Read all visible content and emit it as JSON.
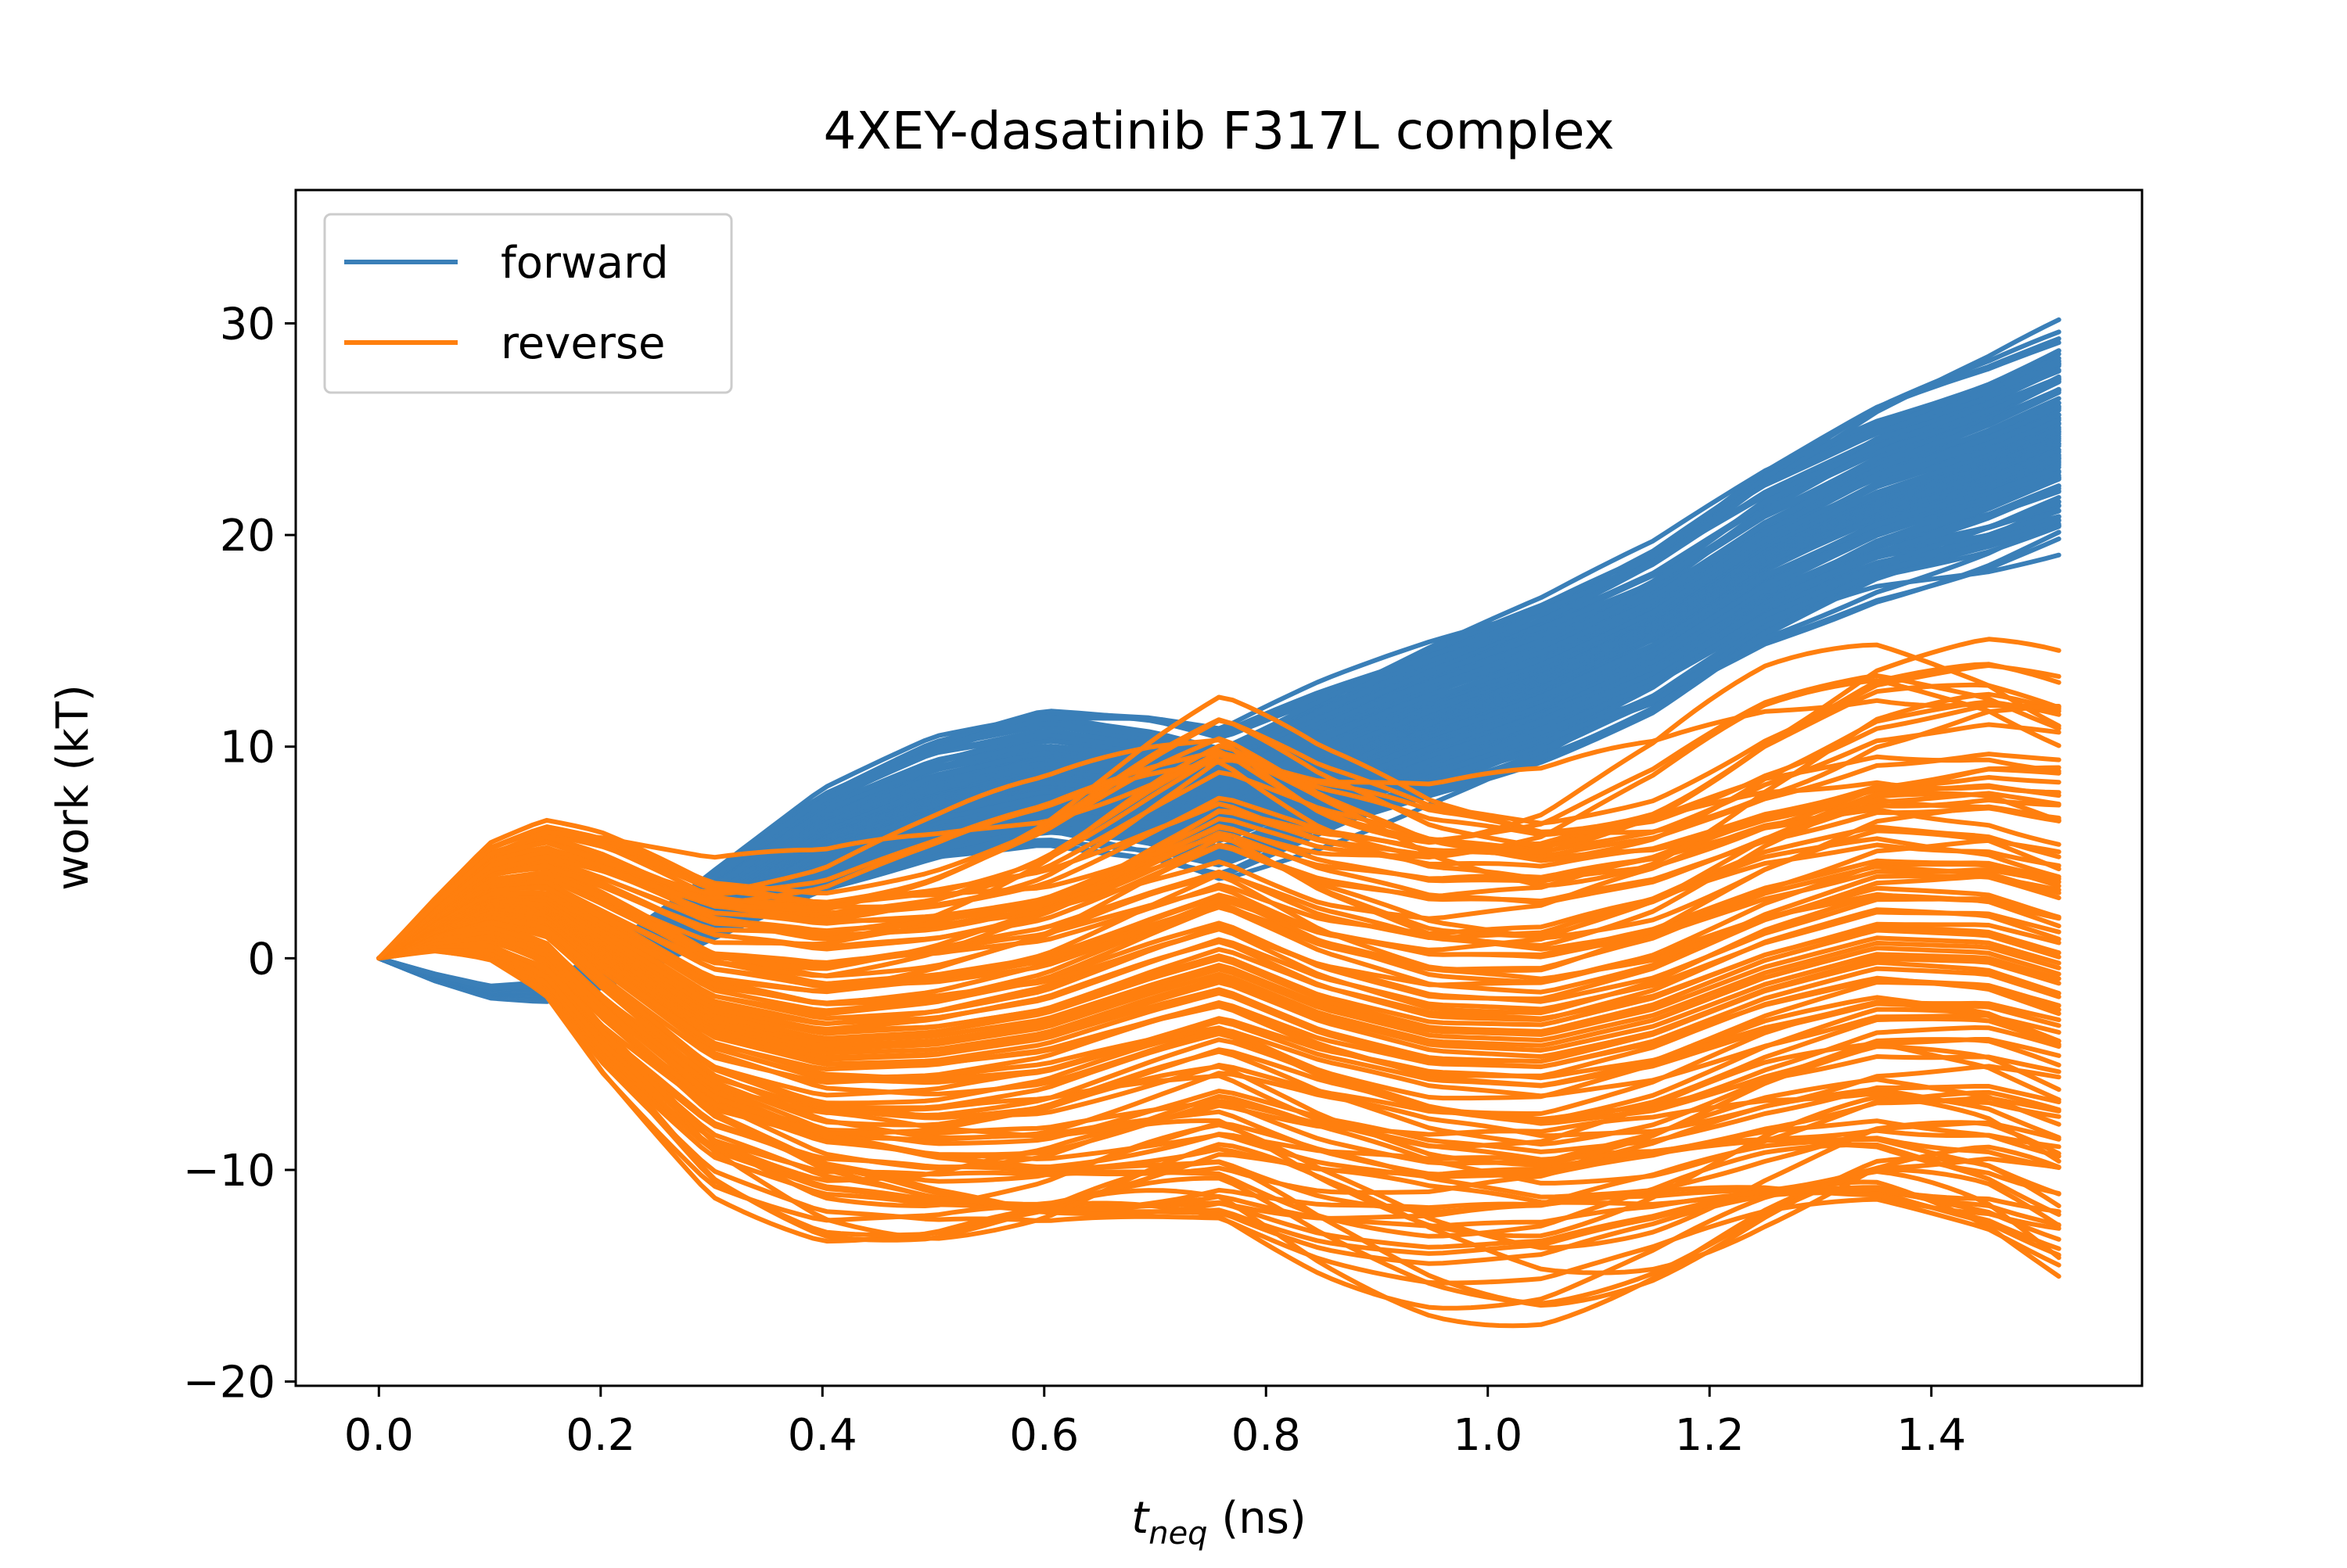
{
  "chart_data": {
    "type": "line",
    "title": "4XEY-dasatinib F317L complex",
    "xlabel_main": "t",
    "xlabel_sub": "neq",
    "xlabel_unit": " (ns)",
    "ylabel": "work (kT)",
    "xlim": [
      -0.075,
      1.59
    ],
    "ylim": [
      -20.2,
      36.3
    ],
    "x_ticks": [
      0.0,
      0.2,
      0.4,
      0.6,
      0.8,
      1.0,
      1.2,
      1.4
    ],
    "x_tick_labels": [
      "0.0",
      "0.2",
      "0.4",
      "0.6",
      "0.8",
      "1.0",
      "1.2",
      "1.4"
    ],
    "y_ticks": [
      -20,
      -10,
      0,
      10,
      20,
      30
    ],
    "y_tick_labels": [
      "−20",
      "−10",
      "0",
      "10",
      "20",
      "30"
    ],
    "grid": false,
    "legend_position": "upper-left",
    "colors": {
      "forward": "#3a7fb8",
      "reverse": "#ff7f0e"
    },
    "series": [
      {
        "name": "forward",
        "color": "#3a7fb8",
        "trajectory_count": 100,
        "x": [
          0.0,
          0.05,
          0.1,
          0.15,
          0.2,
          0.3,
          0.4,
          0.5,
          0.6,
          0.7,
          0.76,
          0.85,
          0.95,
          1.05,
          1.15,
          1.25,
          1.35,
          1.45,
          1.515
        ],
        "mean": [
          0.0,
          -0.9,
          -1.6,
          -1.6,
          -0.6,
          2.5,
          5.6,
          7.5,
          8.6,
          8.0,
          7.2,
          9.2,
          11.3,
          13.2,
          15.6,
          19.0,
          21.5,
          23.2,
          24.6
        ],
        "spread": [
          0.0,
          0.15,
          0.25,
          0.4,
          0.7,
          1.5,
          2.2,
          2.8,
          3.0,
          3.1,
          3.2,
          3.4,
          3.5,
          3.6,
          3.8,
          4.0,
          4.3,
          4.6,
          4.8
        ]
      },
      {
        "name": "reverse",
        "color": "#ff7f0e",
        "trajectory_count": 100,
        "x": [
          0.0,
          0.05,
          0.1,
          0.15,
          0.2,
          0.3,
          0.4,
          0.5,
          0.6,
          0.7,
          0.76,
          0.85,
          0.95,
          1.05,
          1.15,
          1.25,
          1.35,
          1.45,
          1.515
        ],
        "mean": [
          0.0,
          1.5,
          2.6,
          2.4,
          0.5,
          -3.0,
          -4.2,
          -4.0,
          -3.2,
          -1.5,
          -0.6,
          -2.5,
          -3.8,
          -4.0,
          -2.8,
          -0.8,
          0.6,
          0.4,
          -0.6
        ],
        "spread": [
          0.0,
          1.2,
          2.6,
          3.8,
          5.2,
          7.0,
          8.3,
          9.5,
          10.5,
          11.5,
          12.0,
          11.5,
          11.3,
          11.5,
          12.0,
          12.8,
          13.3,
          13.6,
          13.8
        ]
      }
    ],
    "x_range": [
      0.0,
      1.515
    ],
    "y_range_observed": [
      -17.6,
      34.0
    ]
  }
}
